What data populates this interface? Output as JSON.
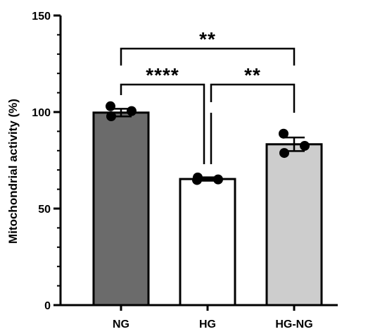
{
  "chart_data": {
    "type": "bar",
    "title": "",
    "xlabel": "",
    "ylabel": "Mitochondrial activity (%)",
    "ylim": [
      0,
      150
    ],
    "yticks": [
      0,
      50,
      100,
      150
    ],
    "grid": false,
    "categories": [
      "NG",
      "HG",
      "HG-NG"
    ],
    "values": [
      99.7,
      65.3,
      83.3
    ],
    "errors": [
      2.0,
      0.9,
      3.5
    ],
    "bar_colors": [
      "#6b6b6b",
      "#ffffff",
      "#cdcdcd"
    ],
    "points": [
      [
        103.0,
        97.8,
        100.5
      ],
      [
        64.8,
        66.1,
        65.1
      ],
      [
        88.8,
        78.8,
        82.5
      ]
    ],
    "significance": [
      {
        "from": 0,
        "to": 1,
        "label": "****"
      },
      {
        "from": 1,
        "to": 2,
        "label": "**"
      },
      {
        "from": 0,
        "to": 2,
        "label": "**"
      }
    ]
  }
}
